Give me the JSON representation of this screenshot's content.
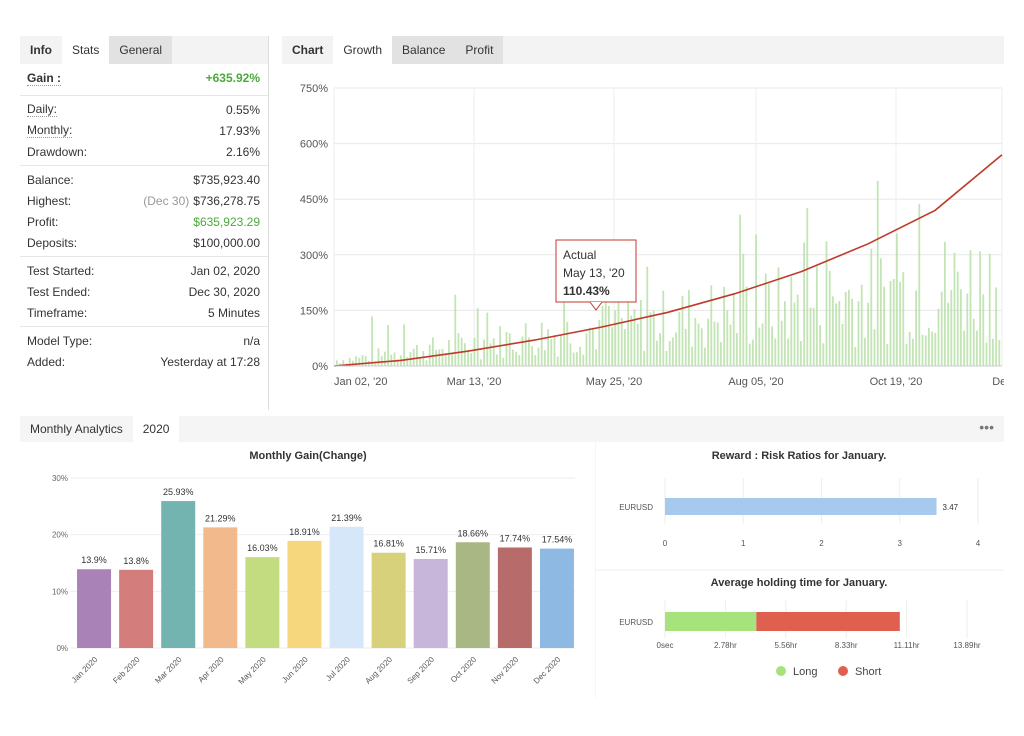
{
  "stats_panel": {
    "tabs": [
      "Info",
      "Stats",
      "General"
    ],
    "gain_label": "Gain :",
    "gain_value": "+635.92%",
    "rows1": [
      {
        "label": "Daily:",
        "value": "0.55%"
      },
      {
        "label": "Monthly:",
        "value": "17.93%"
      },
      {
        "label": "Drawdown:",
        "value": "2.16%"
      }
    ],
    "balance_label": "Balance:",
    "balance_value": "$735,923.40",
    "highest_label": "Highest:",
    "highest_note": "(Dec 30)",
    "highest_value": "$736,278.75",
    "profit_label": "Profit:",
    "profit_value": "$635,923.29",
    "deposits_label": "Deposits:",
    "deposits_value": "$100,000.00",
    "rows3": [
      {
        "label": "Test Started:",
        "value": "Jan 02, 2020"
      },
      {
        "label": "Test Ended:",
        "value": "Dec 30, 2020"
      },
      {
        "label": "Timeframe:",
        "value": "5 Minutes"
      }
    ],
    "rows4": [
      {
        "label": "Model Type:",
        "value": "n/a"
      },
      {
        "label": "Added:",
        "value": "Yesterday at 17:28"
      }
    ]
  },
  "chart_panel": {
    "tabs": [
      "Chart",
      "Growth",
      "Balance",
      "Profit"
    ],
    "tooltip": {
      "title": "Actual",
      "date": "May 13, '20",
      "value": "110.43%"
    }
  },
  "analytics": {
    "tabs": [
      "Monthly Analytics",
      "2020"
    ],
    "more_icon": "•••"
  },
  "chart_data": [
    {
      "type": "line",
      "name": "growth",
      "x_ticks": [
        "Jan 02, '20",
        "Mar 13, '20",
        "May 25, '20",
        "Aug 05, '20",
        "Oct 19, '20",
        "Dec"
      ],
      "y_ticks": [
        "0%",
        "150%",
        "300%",
        "450%",
        "600%",
        "750%"
      ],
      "ylim": [
        0,
        750
      ],
      "x": [
        0,
        0.1,
        0.2,
        0.3,
        0.4,
        0.5,
        0.6,
        0.7,
        0.8,
        0.9,
        1.0
      ],
      "values": [
        0,
        15,
        40,
        70,
        105,
        145,
        195,
        255,
        330,
        420,
        570
      ],
      "colors": {
        "line": "#c0392b",
        "bars": "#b9e0a8"
      }
    },
    {
      "type": "bar",
      "title": "Monthly Gain(Change)",
      "categories": [
        "Jan 2020",
        "Feb 2020",
        "Mar 2020",
        "Apr 2020",
        "May 2020",
        "Jun 2020",
        "Jul 2020",
        "Aug 2020",
        "Sep 2020",
        "Oct 2020",
        "Nov 2020",
        "Dec 2020"
      ],
      "values": [
        13.9,
        13.8,
        25.93,
        21.29,
        16.03,
        18.91,
        21.39,
        16.81,
        15.71,
        18.66,
        17.74,
        17.54
      ],
      "labels": [
        "13.9%",
        "13.8%",
        "25.93%",
        "21.29%",
        "16.03%",
        "18.91%",
        "21.39%",
        "16.81%",
        "15.71%",
        "18.66%",
        "17.74%",
        "17.54%"
      ],
      "colors": [
        "#a983b8",
        "#d47d7d",
        "#73b3b0",
        "#f2b98d",
        "#c4dc80",
        "#f7d77e",
        "#d6e7f9",
        "#d7d17b",
        "#c7b5da",
        "#a9b785",
        "#b86b6b",
        "#8eb9e3"
      ],
      "ylim": [
        0,
        30
      ],
      "y_ticks": [
        "0%",
        "10%",
        "20%",
        "30%"
      ]
    },
    {
      "type": "bar",
      "orientation": "horizontal",
      "title": "Reward : Risk Ratios for January.",
      "categories": [
        "EURUSD"
      ],
      "values": [
        3.47
      ],
      "value_label": "3.47",
      "xlim": [
        0,
        4
      ],
      "x_ticks": [
        "0",
        "1",
        "2",
        "3",
        "4"
      ],
      "color": "#a8c9ee"
    },
    {
      "type": "bar",
      "orientation": "horizontal",
      "stacked": true,
      "title": "Average holding time for January.",
      "categories": [
        "EURUSD"
      ],
      "series": [
        {
          "name": "Long",
          "values": [
            4.2
          ],
          "color": "#a6e37d"
        },
        {
          "name": "Short",
          "values": [
            6.6
          ],
          "color": "#e06050"
        }
      ],
      "xlim": [
        0,
        13.89
      ],
      "x_ticks": [
        "0sec",
        "2.78hr",
        "5.56hr",
        "8.33hr",
        "11.11hr",
        "13.89hr"
      ]
    }
  ]
}
